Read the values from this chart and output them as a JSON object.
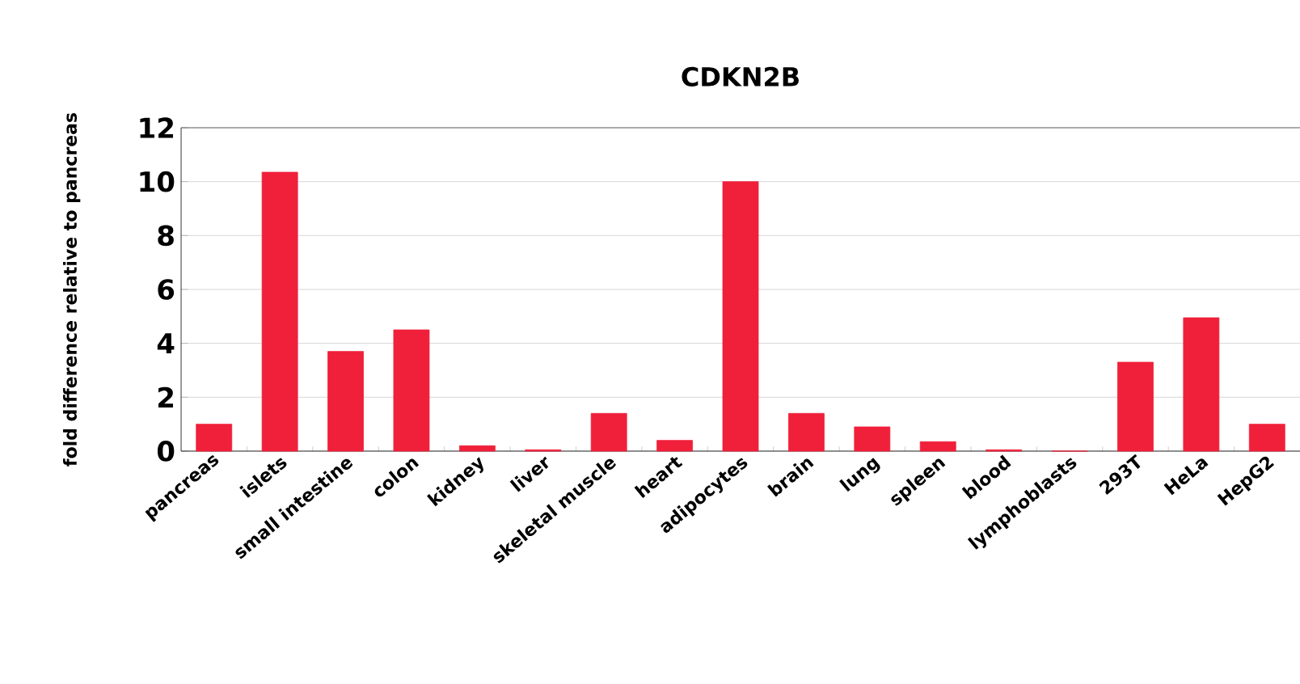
{
  "chart_data": {
    "type": "bar",
    "title": "CDKN2B",
    "ylabel": "fold difference relative to pancreas",
    "categories": [
      "pancreas",
      "islets",
      "small intestine",
      "colon",
      "kidney",
      "liver",
      "skeletal muscle",
      "heart",
      "adipocytes",
      "brain",
      "lung",
      "spleen",
      "blood",
      "lymphoblasts",
      "293T",
      "HeLa",
      "HepG2"
    ],
    "values": [
      1.0,
      10.35,
      3.7,
      4.5,
      0.2,
      0.05,
      1.4,
      0.4,
      10.0,
      1.4,
      0.9,
      0.35,
      0.05,
      0,
      3.3,
      4.95,
      1.0
    ],
    "color": "#f0203a",
    "ylim": [
      0,
      12
    ],
    "yticks": [
      0,
      2,
      4,
      6,
      8,
      10,
      12
    ],
    "grid": "y"
  }
}
